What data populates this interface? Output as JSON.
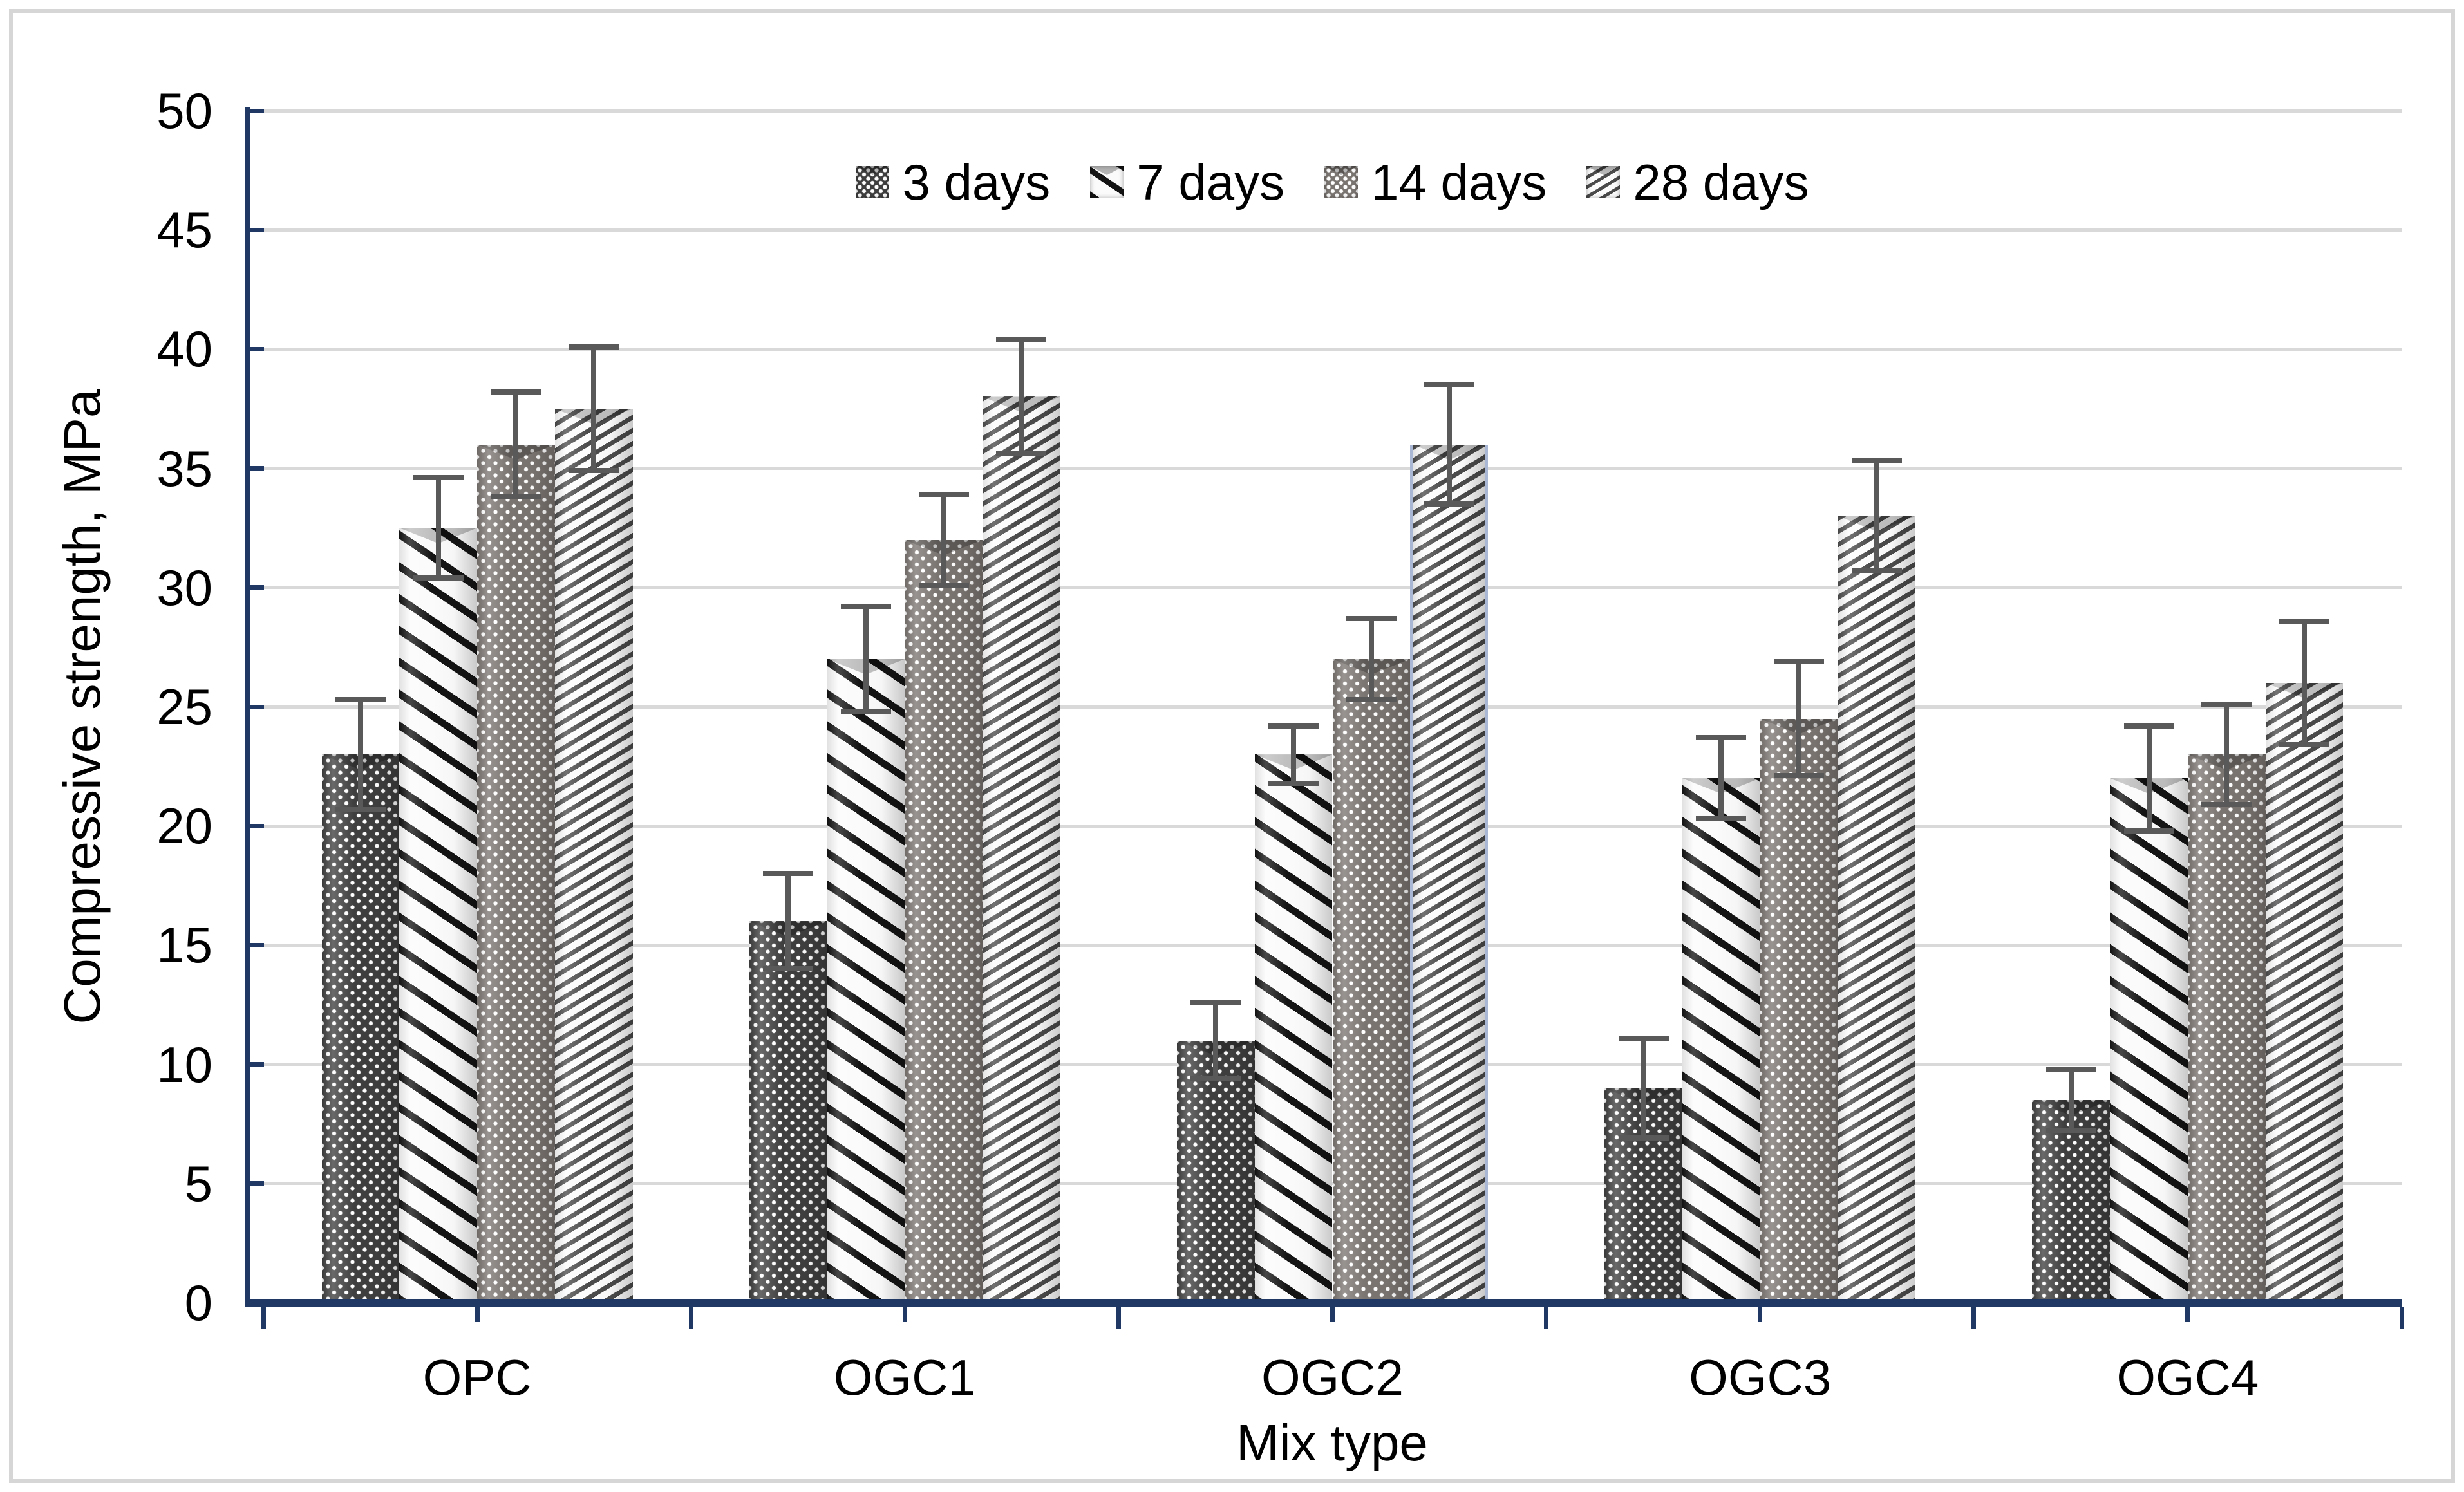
{
  "chart_data": {
    "type": "bar",
    "title": "",
    "xlabel": "Mix type",
    "ylabel": "Compressive strength, MPa",
    "categories": [
      "OPC",
      "OGC1",
      "OGC2",
      "OGC3",
      "OGC4"
    ],
    "series": [
      {
        "name": "3 days",
        "pattern": "white-dots-on-dark-gray",
        "values": [
          23,
          16,
          11,
          9,
          8.5
        ],
        "errors": [
          2.3,
          2.0,
          1.6,
          2.1,
          1.3
        ]
      },
      {
        "name": "7 days",
        "pattern": "thick-black-backslash-stripes",
        "values": [
          32.5,
          27,
          23,
          22,
          22
        ],
        "errors": [
          2.1,
          2.2,
          1.2,
          1.7,
          2.2
        ]
      },
      {
        "name": "14 days",
        "pattern": "white-dots-on-medium-gray",
        "values": [
          36,
          32,
          27,
          24.5,
          23
        ],
        "errors": [
          2.2,
          1.9,
          1.7,
          2.4,
          2.1
        ]
      },
      {
        "name": "28 days",
        "pattern": "thin-gray-forward-slash-stripes",
        "values": [
          37.5,
          38,
          36,
          33,
          26
        ],
        "errors": [
          2.6,
          2.4,
          2.5,
          2.3,
          2.6
        ]
      }
    ],
    "y_axis": {
      "min": 0,
      "max": 50,
      "step": 5,
      "tick_labels": [
        "0",
        "5",
        "10",
        "15",
        "20",
        "25",
        "30",
        "35",
        "40",
        "45",
        "50"
      ]
    },
    "x_axis": {
      "ticks": "long-at-category-boundaries-short-at-centers"
    },
    "legend": {
      "position": "top-center"
    },
    "grid": true,
    "error_bars": true,
    "selected_bar": {
      "category": "OGC2",
      "series": "28 days"
    }
  },
  "colors": {
    "axis": "#1f3864",
    "grid": "#d9d9d9",
    "err": "#595959",
    "text": "#000000",
    "border": "#d6d6d6",
    "s1bg": "#3f3f3f",
    "s1dot": "#ffffff",
    "s2fg": "#141414",
    "s2bg": "#fbfbfb",
    "s3bg": "#7b7571",
    "s3dot": "#ffffff",
    "s4fg": "#4b4b4b",
    "s4bg": "#fcfcfc",
    "sel": "#a9b7d4"
  }
}
